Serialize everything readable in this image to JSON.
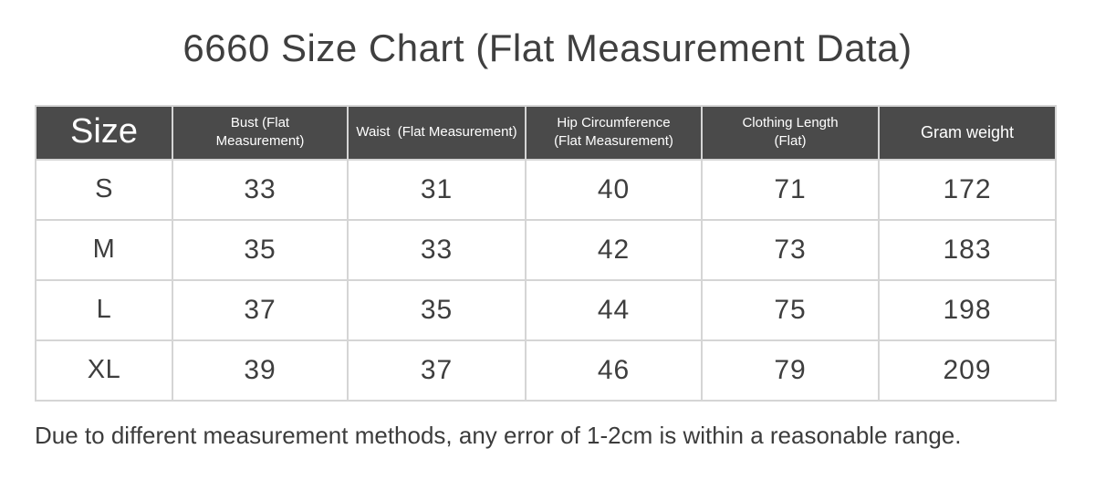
{
  "page": {
    "title": "6660 Size Chart (Flat Measurement Data)",
    "footnote": "Due to different measurement methods, any error of 1-2cm is within a reasonable range."
  },
  "colors": {
    "header_bg": "#4a4a4a",
    "header_text": "#ffffff",
    "body_text": "#3e3e3e",
    "border": "#d5d5d5",
    "page_bg": "#ffffff"
  },
  "table": {
    "columns": [
      {
        "key": "size",
        "label": "Size"
      },
      {
        "key": "bust",
        "label": "Bust (Flat\nMeasurement)"
      },
      {
        "key": "waist",
        "label": "Waist  (Flat Measurement)"
      },
      {
        "key": "hip",
        "label": "Hip Circumference\n(Flat Measurement)"
      },
      {
        "key": "length",
        "label": "Clothing Length\n(Flat)"
      },
      {
        "key": "gram",
        "label": "Gram weight"
      }
    ],
    "rows": [
      {
        "size": "S",
        "bust": "33",
        "waist": "31",
        "hip": "40",
        "length": "71",
        "gram": "172"
      },
      {
        "size": "M",
        "bust": "35",
        "waist": "33",
        "hip": "42",
        "length": "73",
        "gram": "183"
      },
      {
        "size": "L",
        "bust": "37",
        "waist": "35",
        "hip": "44",
        "length": "75",
        "gram": "198"
      },
      {
        "size": "XL",
        "bust": "39",
        "waist": "37",
        "hip": "46",
        "length": "79",
        "gram": "209"
      }
    ]
  }
}
